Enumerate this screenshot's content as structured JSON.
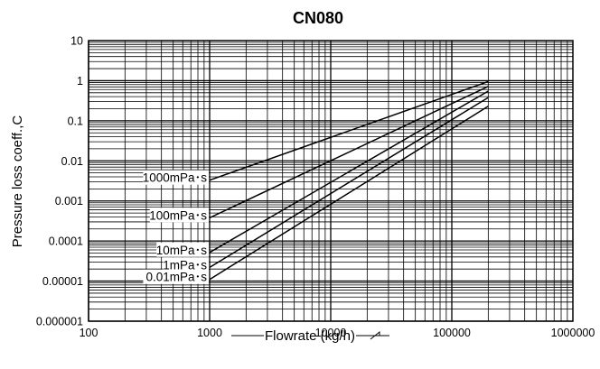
{
  "chart_data": {
    "type": "line",
    "title": "CN080",
    "xlabel": "Flowrate (kg/h)",
    "ylabel": "Pressure loss coeff.,C",
    "x_scale": "log",
    "y_scale": "log",
    "xlim": [
      100,
      1000000
    ],
    "ylim": [
      1e-06,
      10
    ],
    "x_ticks": [
      "100",
      "1000",
      "10000",
      "100000",
      "1000000"
    ],
    "y_ticks": [
      "10",
      "1",
      "0.1",
      "0.01",
      "0.001",
      "0.0001",
      "0.00001",
      "0.000001"
    ],
    "grid": true,
    "series": [
      {
        "name": "1000mPa･s",
        "x": [
          1000,
          200000
        ],
        "y": [
          0.0033,
          0.95
        ]
      },
      {
        "name": "100mPa･s",
        "x": [
          1000,
          200000
        ],
        "y": [
          0.00038,
          0.72
        ]
      },
      {
        "name": "10mPa･s",
        "x": [
          1000,
          200000
        ],
        "y": [
          5.2e-05,
          0.55
        ]
      },
      {
        "name": "1mPa･s",
        "x": [
          1000,
          200000
        ],
        "y": [
          2.2e-05,
          0.38
        ]
      },
      {
        "name": "0.01mPa･s",
        "x": [
          1000,
          200000
        ],
        "y": [
          1.1e-05,
          0.23
        ]
      }
    ]
  }
}
